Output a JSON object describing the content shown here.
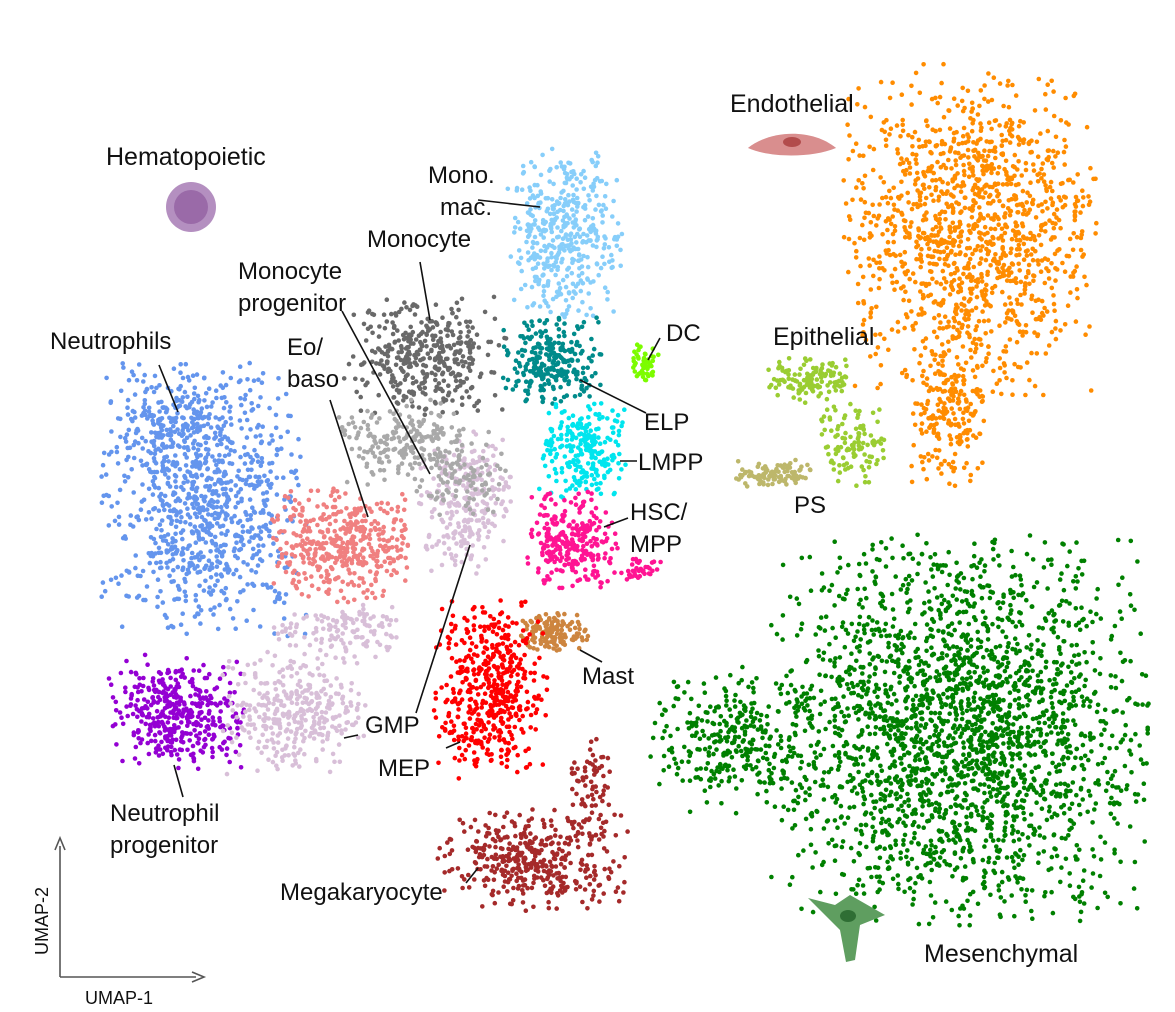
{
  "chart_data": {
    "type": "scatter",
    "xlabel": "UMAP-1",
    "ylabel": "UMAP-2",
    "grid": false,
    "legend": "none",
    "group_labels": [
      "Hematopoietic",
      "Endothelial",
      "Epithelial",
      "Mesenchymal"
    ],
    "series": [
      {
        "name": "Neutrophils",
        "color": "#6495ED"
      },
      {
        "name": "Neutrophil progenitor",
        "color": "#9400D3"
      },
      {
        "name": "GMP",
        "color": "#D8BFD8"
      },
      {
        "name": "Eo/ baso",
        "color": "#F08080"
      },
      {
        "name": "Monocyte",
        "color": "#696969"
      },
      {
        "name": "Monocyte progenitor",
        "color": "#A9A9A9"
      },
      {
        "name": "Mono. mac.",
        "color": "#87CEFA"
      },
      {
        "name": "DC",
        "color": "#7CFC00"
      },
      {
        "name": "ELP",
        "color": "#008B8B"
      },
      {
        "name": "LMPP",
        "color": "#00E5EE"
      },
      {
        "name": "HSC/ MPP",
        "color": "#FF1493"
      },
      {
        "name": "Mast",
        "color": "#CD853F"
      },
      {
        "name": "MEP",
        "color": "#FF0000"
      },
      {
        "name": "Megakaryocyte",
        "color": "#A52A2A"
      },
      {
        "name": "Endothelial",
        "color": "#FF8C00"
      },
      {
        "name": "Epithelial",
        "color": "#9ACD32"
      },
      {
        "name": "PS",
        "color": "#BDB76B"
      },
      {
        "name": "Mesenchymal",
        "color": "#008000"
      }
    ]
  }
}
